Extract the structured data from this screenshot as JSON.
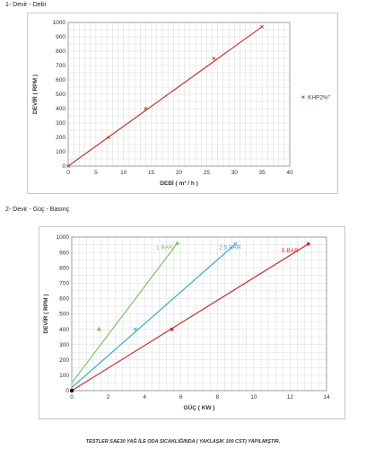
{
  "sections": [
    {
      "title": "1- Devir - Debi"
    },
    {
      "title": "2- Devir - Güç - Basınç"
    }
  ],
  "footer": "TESTLER SAE30 YAĞ İLE ODA SICAKLIĞINDA ( YAKLAŞIK 100 CST) YAPILMIŞTIR.",
  "chart_data": [
    {
      "type": "scatter",
      "title": "",
      "xlabel": "DEBİ ( m³ / h )",
      "ylabel": "DEVİR ( RPM )",
      "xlim": [
        0,
        40
      ],
      "ylim": [
        0,
        1000
      ],
      "xticks": [
        0,
        5,
        10,
        15,
        20,
        25,
        30,
        35,
        40
      ],
      "yticks": [
        0,
        100,
        200,
        300,
        400,
        500,
        600,
        700,
        800,
        900,
        1000
      ],
      "grid": true,
      "legend": "right",
      "series": [
        {
          "name": "KHP2%\"",
          "color": "#c0392b",
          "marker": "x",
          "line": [
            [
              0,
              0
            ],
            [
              35,
              970
            ]
          ],
          "points": [
            [
              0,
              0
            ],
            [
              7.3,
              200
            ],
            [
              14,
              400
            ],
            [
              26.3,
              750
            ],
            [
              35,
              970
            ]
          ]
        }
      ]
    },
    {
      "type": "scatter",
      "title": "",
      "xlabel": "GÜÇ ( KW )",
      "ylabel": "DEVİR ( RPM )",
      "xlim": [
        0,
        14
      ],
      "ylim": [
        0,
        1000
      ],
      "xticks": [
        0,
        2,
        4,
        6,
        8,
        10,
        12,
        14
      ],
      "yticks": [
        0,
        100,
        200,
        300,
        400,
        500,
        600,
        700,
        800,
        900,
        1000
      ],
      "grid": true,
      "legend": "none",
      "series": [
        {
          "name": "1 BAR",
          "color": "#7dc46a",
          "marker": "triangle",
          "line": [
            [
              0,
              50
            ],
            [
              5.8,
              960
            ]
          ],
          "points": [
            [
              1.5,
              400
            ],
            [
              5.8,
              960
            ]
          ]
        },
        {
          "name": "2.5 BAR",
          "color": "#3aaad0",
          "marker": "x",
          "line": [
            [
              0,
              20
            ],
            [
              9,
              955
            ]
          ],
          "points": [
            [
              3.5,
              400
            ],
            [
              9,
              955
            ]
          ]
        },
        {
          "name": "5 BAR",
          "color": "#cc3333",
          "marker": "square",
          "line": [
            [
              0,
              0
            ],
            [
              13,
              955
            ]
          ],
          "points": [
            [
              0,
              0
            ],
            [
              5.5,
              400
            ],
            [
              13,
              955
            ]
          ]
        }
      ],
      "series_labels": [
        {
          "series": "1 BAR",
          "x": 5.1,
          "y": 920
        },
        {
          "series": "2.5 BAR",
          "x": 8.7,
          "y": 920
        },
        {
          "series": "5 BAR",
          "x": 12.0,
          "y": 900
        }
      ]
    }
  ]
}
